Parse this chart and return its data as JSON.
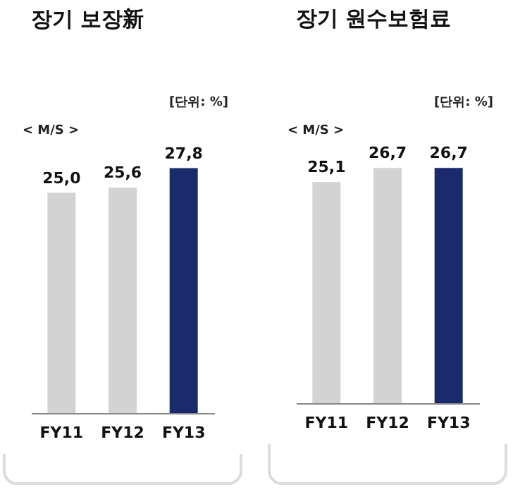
{
  "chart_data": [
    {
      "type": "bar",
      "title": "장기 보장新",
      "categories": [
        "FY11",
        "FY12",
        "FY13"
      ],
      "values": [
        25.0,
        25.6,
        27.8
      ],
      "value_labels": [
        "25,0",
        "25,6",
        "27,8"
      ],
      "colors": [
        "#d3d3d3",
        "#d3d3d3",
        "#1b2a6b"
      ],
      "annotations": [
        "[단위: %]",
        "< M/S >"
      ]
    },
    {
      "type": "bar",
      "title": "장기 원수보험료",
      "categories": [
        "FY11",
        "FY12",
        "FY13"
      ],
      "values": [
        25.1,
        26.7,
        26.7
      ],
      "value_labels": [
        "25,1",
        "26,7",
        "26,7"
      ],
      "colors": [
        "#d3d3d3",
        "#d3d3d3",
        "#1b2a6b"
      ],
      "annotations": [
        "[단위: %]",
        "< M/S >"
      ]
    }
  ]
}
